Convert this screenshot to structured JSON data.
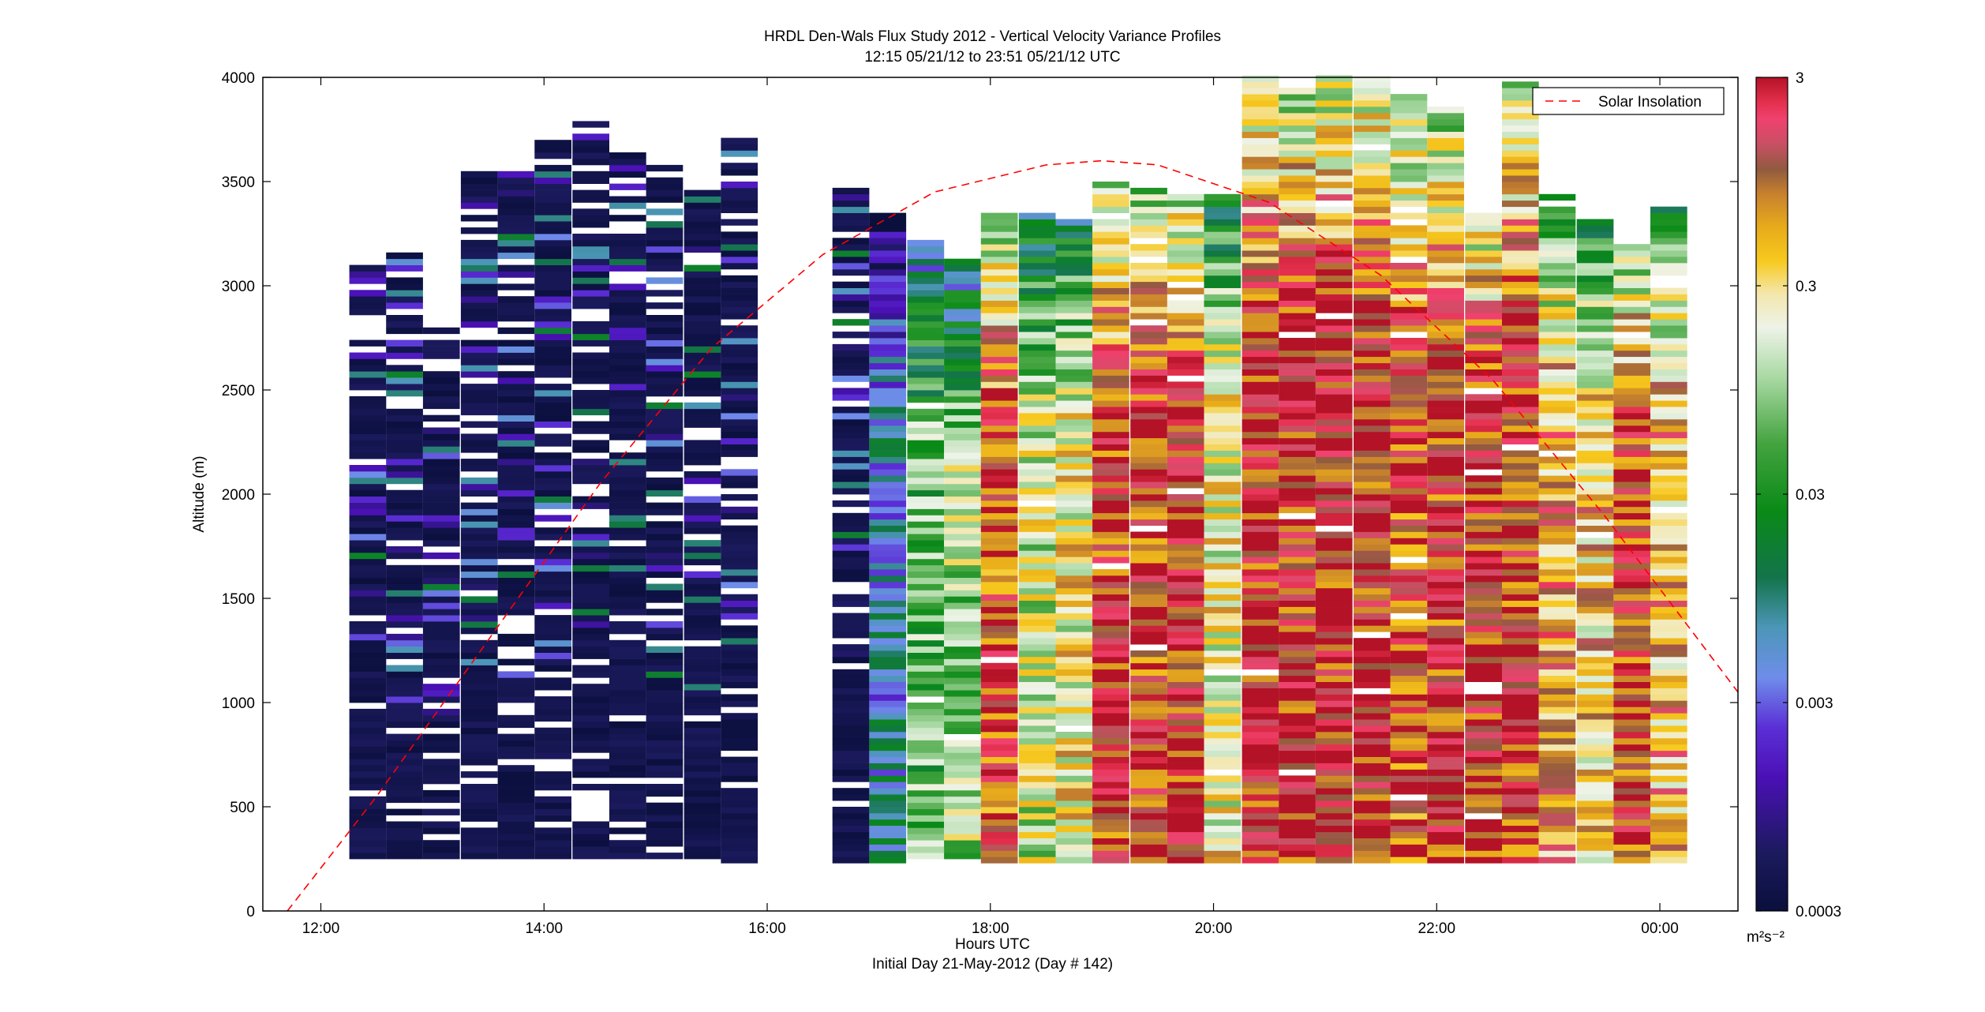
{
  "chart_data": {
    "type": "heatmap",
    "title": "HRDL Den-Wals Flux Study 2012 - Vertical Velocity Variance Profiles",
    "subtitle": "12:15 05/21/12 to 23:51 05/21/12  UTC",
    "xlabel": "Hours UTC",
    "xlabel2": "Initial Day 21-May-2012 (Day # 142)",
    "ylabel": "Altitude (m)",
    "x_ticks": [
      "12:00",
      "14:00",
      "16:00",
      "18:00",
      "20:00",
      "22:00",
      "00:00"
    ],
    "x_tick_hours": [
      12,
      14,
      16,
      18,
      20,
      22,
      24
    ],
    "xlim_hours": [
      11.48,
      24.7
    ],
    "y_ticks": [
      0,
      500,
      1000,
      1500,
      2000,
      2500,
      3000,
      3500,
      4000
    ],
    "ylim": [
      0,
      4000
    ],
    "grid": false,
    "colorbar": {
      "scale": "log",
      "range": [
        0.0003,
        3
      ],
      "ticks": [
        0.0003,
        0.003,
        0.03,
        0.3,
        3
      ],
      "tick_labels": [
        "0.0003",
        "0.003",
        "0.03",
        "0.3",
        "3"
      ],
      "unit_label": "m²s⁻²"
    },
    "legend": {
      "position": "top-right",
      "entries": [
        "Solar Insolation"
      ]
    },
    "solar_insolation_curve": {
      "color": "#ff0000",
      "style": "dashed",
      "x_hours": [
        11.7,
        12.5,
        13.5,
        14.5,
        15.5,
        16.5,
        17.5,
        18.5,
        19.0,
        19.5,
        20.5,
        21.5,
        22.5,
        23.5,
        24.7
      ],
      "y_altitude": [
        0,
        550,
        1300,
        2050,
        2700,
        3150,
        3450,
        3580,
        3600,
        3580,
        3400,
        3050,
        2550,
        1900,
        1050
      ]
    },
    "profiles": [
      {
        "t": 12.42,
        "range": [
          250,
          3100
        ],
        "dominant_log10": -3.4
      },
      {
        "t": 12.75,
        "range": [
          250,
          3170
        ],
        "dominant_log10": -3.4
      },
      {
        "t": 13.08,
        "range": [
          250,
          2800
        ],
        "dominant_log10": -3.4
      },
      {
        "t": 13.42,
        "range": [
          250,
          3530
        ],
        "dominant_log10": -3.4
      },
      {
        "t": 13.75,
        "range": [
          250,
          3550
        ],
        "dominant_log10": -3.4
      },
      {
        "t": 14.08,
        "range": [
          250,
          3680
        ],
        "dominant_log10": -3.4
      },
      {
        "t": 14.42,
        "range": [
          250,
          3770
        ],
        "dominant_log10": -3.4
      },
      {
        "t": 14.75,
        "range": [
          250,
          3640
        ],
        "dominant_log10": -3.4
      },
      {
        "t": 15.08,
        "range": [
          250,
          3560
        ],
        "dominant_log10": -3.4
      },
      {
        "t": 15.42,
        "range": [
          250,
          3480
        ],
        "dominant_log10": -3.4
      },
      {
        "t": 15.75,
        "range": [
          230,
          3700
        ],
        "dominant_log10": -3.4
      },
      {
        "t": 16.75,
        "range": [
          230,
          3460
        ],
        "dominant_log10": -3.3
      },
      {
        "t": 17.08,
        "range": [
          230,
          3330
        ],
        "dominant_log10": -2.2
      },
      {
        "t": 17.42,
        "range": [
          250,
          3200
        ],
        "dominant_log10": -1.2
      },
      {
        "t": 17.75,
        "range": [
          250,
          3110
        ],
        "dominant_log10": -1.0
      },
      {
        "t": 18.08,
        "range": [
          230,
          3350
        ],
        "dominant_log10": 0.1
      },
      {
        "t": 18.42,
        "range": [
          230,
          3330
        ],
        "dominant_log10": -0.8
      },
      {
        "t": 18.75,
        "range": [
          230,
          3300
        ],
        "dominant_log10": -0.6
      },
      {
        "t": 19.08,
        "range": [
          230,
          3500
        ],
        "dominant_log10": 0.2
      },
      {
        "t": 19.42,
        "range": [
          230,
          3460
        ],
        "dominant_log10": 0.2
      },
      {
        "t": 19.75,
        "range": [
          230,
          3440
        ],
        "dominant_log10": 0.3
      },
      {
        "t": 20.08,
        "range": [
          230,
          3430
        ],
        "dominant_log10": -0.6
      },
      {
        "t": 20.42,
        "range": [
          230,
          4000
        ],
        "dominant_log10": 0.3
      },
      {
        "t": 20.75,
        "range": [
          230,
          3980
        ],
        "dominant_log10": 0.3
      },
      {
        "t": 21.08,
        "range": [
          230,
          4000
        ],
        "dominant_log10": 0.3
      },
      {
        "t": 21.42,
        "range": [
          230,
          4000
        ],
        "dominant_log10": 0.3
      },
      {
        "t": 21.75,
        "range": [
          230,
          3920
        ],
        "dominant_log10": 0.1
      },
      {
        "t": 22.08,
        "range": [
          230,
          3840
        ],
        "dominant_log10": 0.2
      },
      {
        "t": 22.42,
        "range": [
          230,
          3340
        ],
        "dominant_log10": 0.3
      },
      {
        "t": 22.75,
        "range": [
          230,
          3980
        ],
        "dominant_log10": 0.2
      },
      {
        "t": 23.08,
        "range": [
          230,
          3430
        ],
        "dominant_log10": -0.2
      },
      {
        "t": 23.42,
        "range": [
          230,
          3300
        ],
        "dominant_log10": -0.4
      },
      {
        "t": 23.75,
        "range": [
          230,
          3200
        ],
        "dominant_log10": 0.2
      },
      {
        "t": 24.08,
        "range": [
          230,
          3370
        ],
        "dominant_log10": -0.3
      }
    ],
    "colors": {
      "curve": "#ff0000",
      "missing": "#ffffff",
      "colormap_stops": [
        {
          "v": 0.0,
          "c": "#0a0f3c"
        },
        {
          "v": 0.07,
          "c": "#1c1a5e"
        },
        {
          "v": 0.16,
          "c": "#4a10b5"
        },
        {
          "v": 0.22,
          "c": "#5b2fd6"
        },
        {
          "v": 0.28,
          "c": "#6f8dea"
        },
        {
          "v": 0.34,
          "c": "#4c96b8"
        },
        {
          "v": 0.4,
          "c": "#13744a"
        },
        {
          "v": 0.48,
          "c": "#0a8a17"
        },
        {
          "v": 0.56,
          "c": "#43a33f"
        },
        {
          "v": 0.64,
          "c": "#a9d9a3"
        },
        {
          "v": 0.7,
          "c": "#eef3e8"
        },
        {
          "v": 0.74,
          "c": "#f3e7ad"
        },
        {
          "v": 0.78,
          "c": "#f7c91e"
        },
        {
          "v": 0.82,
          "c": "#e8ab1b"
        },
        {
          "v": 0.86,
          "c": "#c7812d"
        },
        {
          "v": 0.89,
          "c": "#915a40"
        },
        {
          "v": 0.92,
          "c": "#c85063"
        },
        {
          "v": 0.95,
          "c": "#f0416f"
        },
        {
          "v": 0.97,
          "c": "#e4304d"
        },
        {
          "v": 1.0,
          "c": "#b41226"
        }
      ]
    }
  }
}
